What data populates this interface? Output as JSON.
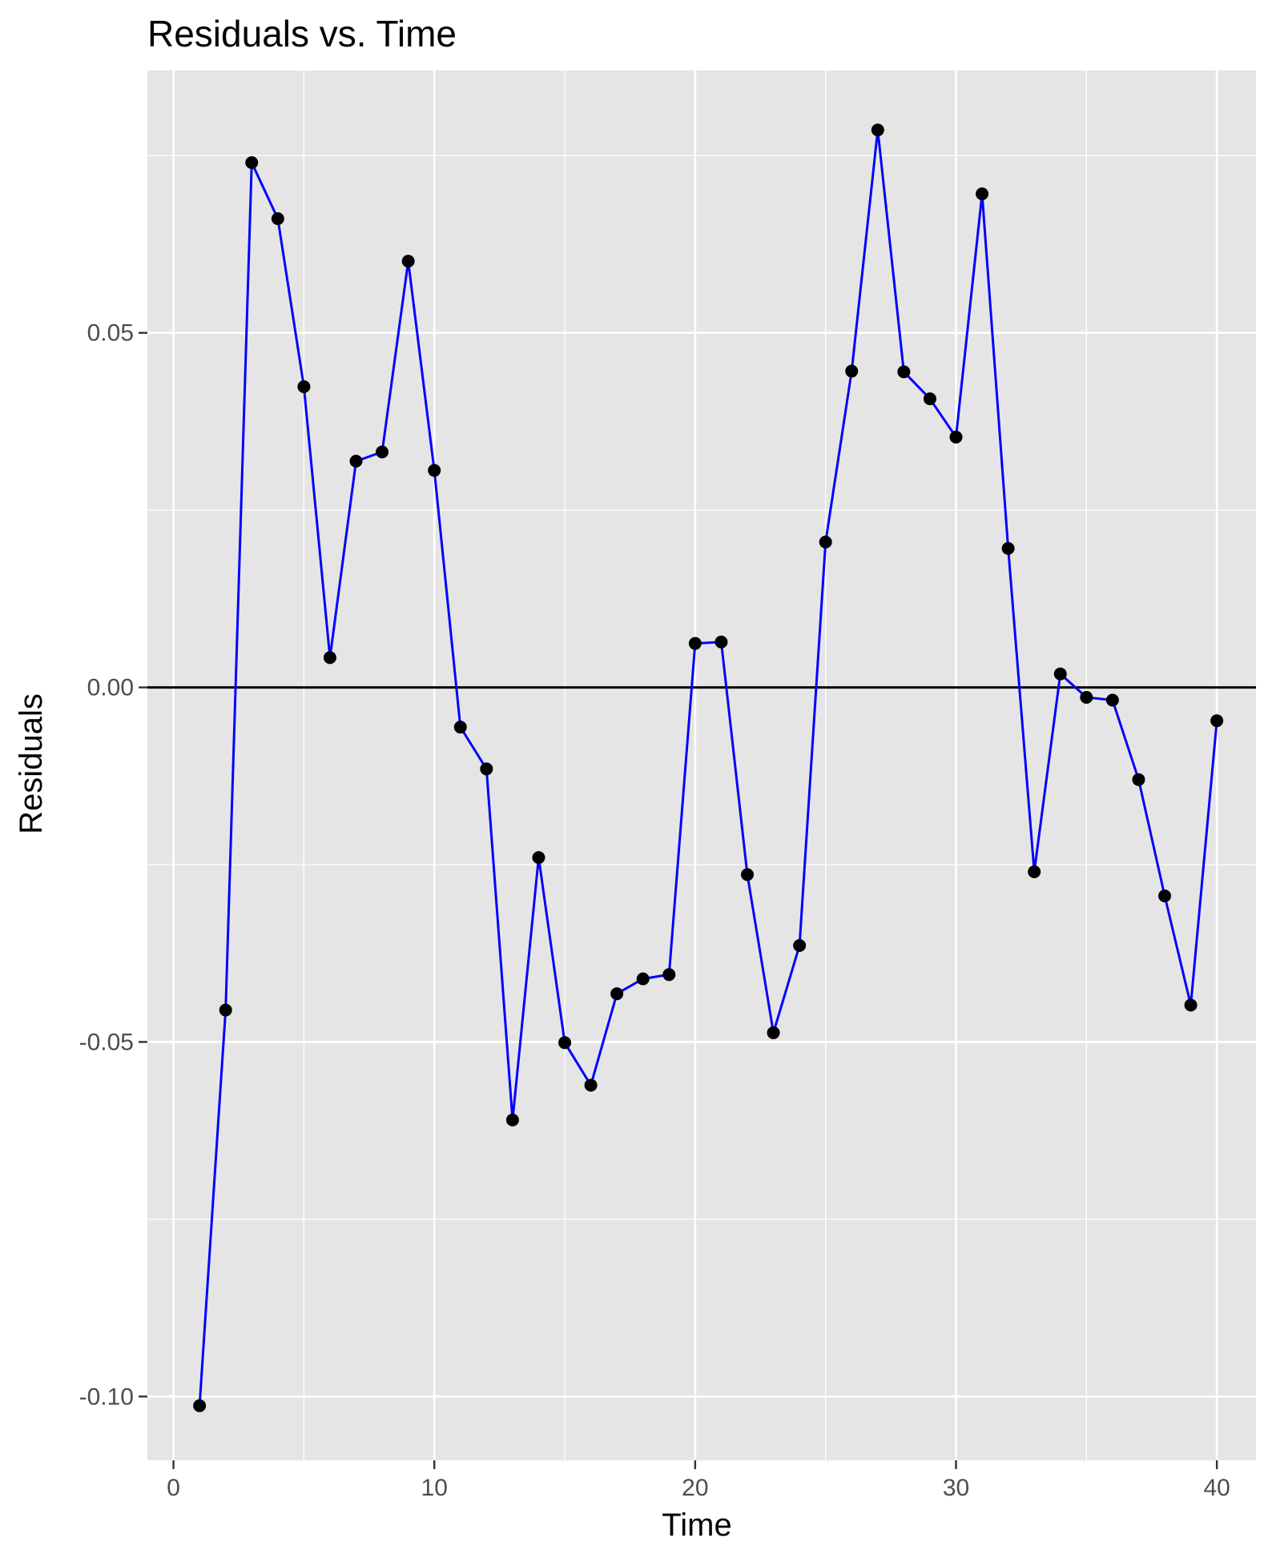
{
  "chart_data": {
    "type": "line",
    "title": "Residuals vs. Time",
    "xlabel": "Time",
    "ylabel": "Residuals",
    "xlim": [
      -1,
      41.5
    ],
    "ylim": [
      -0.109,
      0.087
    ],
    "x_ticks": [
      0,
      10,
      20,
      30,
      40
    ],
    "y_ticks": [
      -0.1,
      -0.05,
      0.0,
      0.05
    ],
    "x_tick_labels": [
      "0",
      "10",
      "20",
      "30",
      "40"
    ],
    "y_tick_labels": [
      "-0.10",
      "-0.05",
      "0.00",
      "0.05"
    ],
    "grid": true,
    "reference_line_y": 0,
    "colors": {
      "panel": "#e5e5e5",
      "grid": "#ffffff",
      "line": "#0000ff",
      "points": "#000000",
      "reference_line": "#000000"
    },
    "series": [
      {
        "x": [
          1,
          2,
          3,
          4,
          5,
          6,
          7,
          8,
          9,
          10,
          11,
          12,
          13,
          14,
          15,
          16,
          17,
          18,
          19,
          20,
          21,
          22,
          23,
          24,
          25,
          26,
          27,
          28,
          29,
          30,
          31,
          32,
          33,
          34,
          35,
          36,
          37,
          38,
          39,
          40
        ],
        "values": [
          -0.1013,
          -0.0455,
          0.074,
          0.0661,
          0.0424,
          0.0042,
          0.0319,
          0.0332,
          0.0601,
          0.0306,
          -0.0056,
          -0.0115,
          -0.061,
          -0.024,
          -0.0501,
          -0.0561,
          -0.0432,
          -0.0411,
          -0.0405,
          0.0062,
          0.0064,
          -0.0264,
          -0.0487,
          -0.0364,
          0.0205,
          0.0446,
          0.0786,
          0.0445,
          0.0407,
          0.0353,
          0.0696,
          0.0196,
          -0.026,
          0.0019,
          -0.0014,
          -0.0018,
          -0.013,
          -0.0294,
          -0.0448,
          -0.0047
        ]
      }
    ]
  }
}
